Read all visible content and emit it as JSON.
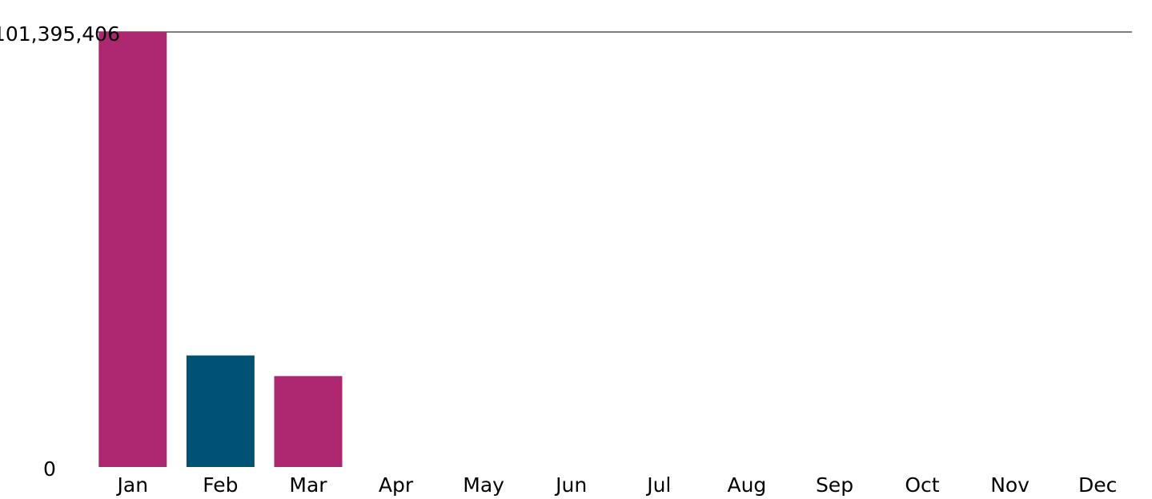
{
  "chart_data": {
    "type": "bar",
    "categories": [
      "Jan",
      "Feb",
      "Mar",
      "Apr",
      "May",
      "Jun",
      "Jul",
      "Aug",
      "Sep",
      "Oct",
      "Nov",
      "Dec"
    ],
    "values": [
      101395406,
      26000000,
      21200000,
      0,
      0,
      0,
      0,
      0,
      0,
      0,
      0,
      0
    ],
    "bar_colors": [
      "#ad2770",
      "#005275",
      "#ad2770",
      "#ad2770",
      "#ad2770",
      "#ad2770",
      "#ad2770",
      "#ad2770",
      "#ad2770",
      "#ad2770",
      "#ad2770",
      "#ad2770"
    ],
    "ylim": [
      0,
      101395406
    ],
    "y_ticks": [
      "0",
      "101,395,406"
    ],
    "title": "",
    "xlabel": "",
    "ylabel": "",
    "grid": false,
    "legend": "none"
  }
}
